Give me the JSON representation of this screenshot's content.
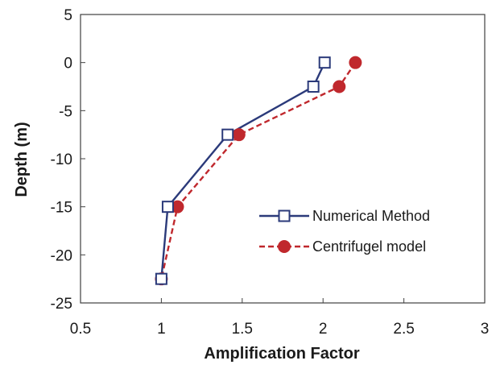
{
  "chart_data": {
    "type": "line",
    "title": "",
    "xlabel": "Amplification Factor",
    "ylabel": "Depth (m)",
    "xlim": [
      0.5,
      3
    ],
    "ylim": [
      -25,
      5
    ],
    "x_ticks": [
      0.5,
      1,
      1.5,
      2,
      2.5,
      3
    ],
    "x_tick_labels": [
      "0.5",
      "1",
      "1.5",
      "2",
      "2.5",
      "3"
    ],
    "y_ticks": [
      5,
      0,
      -5,
      -10,
      -15,
      -20,
      -25
    ],
    "y_tick_labels": [
      "5",
      "0",
      "-5",
      "-10",
      "-15",
      "-20",
      "-25"
    ],
    "grid": false,
    "legend_position": "lower-right",
    "series": [
      {
        "name": "Numerical Method",
        "color": "#2b3a7a",
        "marker": "open-square",
        "line_style": "solid",
        "points": [
          {
            "x": 2.01,
            "y": 0
          },
          {
            "x": 1.94,
            "y": -2.5
          },
          {
            "x": 1.41,
            "y": -7.5
          },
          {
            "x": 1.04,
            "y": -15
          },
          {
            "x": 1.0,
            "y": -22.5
          }
        ]
      },
      {
        "name": "Centrifugel model",
        "color": "#c0282d",
        "marker": "filled-circle",
        "line_style": "dashed",
        "points": [
          {
            "x": 2.2,
            "y": 0
          },
          {
            "x": 2.1,
            "y": -2.5
          },
          {
            "x": 1.48,
            "y": -7.5
          },
          {
            "x": 1.1,
            "y": -15
          },
          {
            "x": 1.0,
            "y": -22.5
          }
        ]
      }
    ]
  }
}
